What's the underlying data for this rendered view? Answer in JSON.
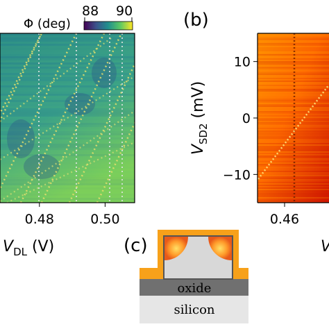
{
  "chart_data": [
    {
      "id": "a",
      "type": "heatmap",
      "panel_label": "",
      "colormap": "viridis",
      "colorbar": {
        "label": "Φ (deg)",
        "ticks": [
          "88",
          "90"
        ],
        "range": [
          88,
          90
        ]
      },
      "xlabel_var": "V",
      "xlabel_sub": "DL",
      "xlabel_unit": " (V)",
      "xticks": [
        "0.48",
        "0.50"
      ],
      "x_tick_values": [
        0.48,
        0.5
      ],
      "xlim": [
        0.468,
        0.509
      ],
      "overlay_lines": "dotted diagonal charge transitions",
      "grid": false
    },
    {
      "id": "b",
      "type": "heatmap",
      "panel_label": "(b)",
      "colormap": "hot",
      "ylabel_var": "V",
      "ylabel_sub": "SD2",
      "ylabel_unit": " (mV)",
      "yticks": [
        "10",
        "0",
        "−10"
      ],
      "y_tick_values": [
        10,
        0,
        -10
      ],
      "ylim": [
        -15,
        15
      ],
      "xticks": [
        "0.46"
      ],
      "x_tick_values": [
        0.46
      ],
      "xlabel_fragment": "V",
      "grid": false
    }
  ],
  "diagram": {
    "panel_label": "(c)",
    "layers": [
      "oxide",
      "silicon"
    ],
    "colors": {
      "metal": "#f7a11a",
      "oxide": "#707070",
      "silicon": "#e6e6e6",
      "nanowire": "#d8d8d8"
    }
  }
}
